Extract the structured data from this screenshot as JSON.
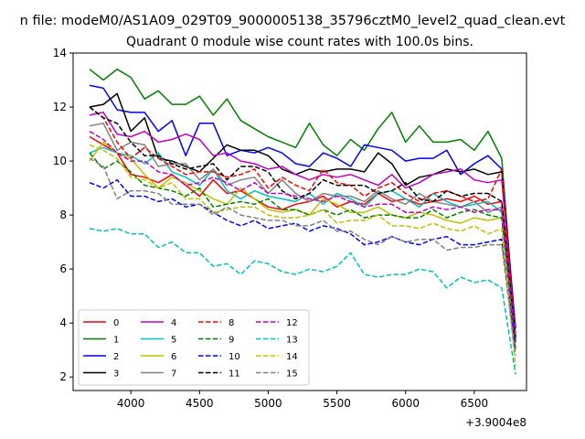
{
  "chart_data": {
    "type": "line",
    "suptitle": "n file: modeM0/AS1A09_029T09_9000005138_35796cztM0_level2_quad_clean.evt",
    "title": "Quadrant 0 module wise count rates with 100.0s bins.",
    "xlabel": "",
    "ylabel": "",
    "x_offset_label": "+3.9004e8",
    "xlim": [
      3580,
      6880
    ],
    "ylim": [
      1.5,
      14
    ],
    "xticks": [
      4000,
      4500,
      5000,
      5500,
      6000,
      6500
    ],
    "yticks": [
      2,
      4,
      6,
      8,
      10,
      12,
      14
    ],
    "legend_position": "lower-left",
    "legend_columns": 4,
    "x": [
      3700,
      3800,
      3900,
      4000,
      4100,
      4200,
      4300,
      4400,
      4500,
      4600,
      4700,
      4800,
      4900,
      5000,
      5100,
      5200,
      5300,
      5400,
      5500,
      5600,
      5700,
      5800,
      5900,
      6000,
      6100,
      6200,
      6300,
      6400,
      6500,
      6600,
      6700,
      6800
    ],
    "series": [
      {
        "name": "0",
        "color": "#ff0000",
        "dash": "solid",
        "values": [
          10.9,
          10.6,
          10.3,
          9.5,
          9.4,
          9.2,
          9.5,
          9.1,
          8.7,
          9.3,
          8.8,
          8.9,
          8.6,
          8.3,
          8.2,
          8.4,
          8.5,
          8.7,
          8.3,
          8.5,
          8.4,
          8.8,
          8.5,
          8.6,
          8.4,
          8.5,
          8.6,
          8.5,
          8.7,
          8.4,
          8.5,
          3.5
        ]
      },
      {
        "name": "1",
        "color": "#008000",
        "dash": "solid",
        "values": [
          13.4,
          13.0,
          13.4,
          13.1,
          12.3,
          12.6,
          12.1,
          12.1,
          12.4,
          11.7,
          12.3,
          11.5,
          11.2,
          10.9,
          10.7,
          10.5,
          11.4,
          10.6,
          10.2,
          10.8,
          10.4,
          11.2,
          11.8,
          10.7,
          11.3,
          10.7,
          10.7,
          10.8,
          10.4,
          11.1,
          10.1,
          3.5
        ]
      },
      {
        "name": "2",
        "color": "#0000ff",
        "dash": "solid",
        "values": [
          12.8,
          12.7,
          11.9,
          11.8,
          11.8,
          11.1,
          11.5,
          10.2,
          11.4,
          11.4,
          10.2,
          10.4,
          10.3,
          10.5,
          10.3,
          9.9,
          9.8,
          10.3,
          10.1,
          9.8,
          10.6,
          10.5,
          10.4,
          10.0,
          10.1,
          10.1,
          10.4,
          9.5,
          9.9,
          10.2,
          9.7,
          3.8
        ]
      },
      {
        "name": "3",
        "color": "#000000",
        "dash": "solid",
        "values": [
          12.0,
          12.1,
          12.5,
          11.1,
          11.6,
          10.1,
          10.0,
          9.8,
          9.6,
          10.1,
          10.6,
          10.4,
          10.4,
          10.2,
          9.7,
          9.5,
          9.7,
          9.6,
          9.7,
          9.7,
          9.6,
          10.3,
          9.9,
          9.1,
          9.4,
          9.5,
          9.7,
          9.6,
          9.7,
          9.5,
          9.6,
          3.5
        ]
      },
      {
        "name": "4",
        "color": "#bf00bf",
        "dash": "solid",
        "values": [
          11.7,
          11.8,
          11.0,
          10.9,
          11.1,
          10.7,
          10.8,
          11.0,
          10.8,
          10.2,
          10.3,
          10.0,
          9.9,
          9.7,
          9.8,
          9.5,
          9.3,
          9.5,
          9.4,
          9.5,
          9.3,
          9.1,
          9.5,
          9.0,
          9.2,
          9.5,
          9.6,
          9.7,
          9.3,
          9.2,
          9.3,
          3.5
        ]
      },
      {
        "name": "5",
        "color": "#00bfbf",
        "dash": "solid",
        "values": [
          10.3,
          10.5,
          10.3,
          10.2,
          9.9,
          10.3,
          9.6,
          9.4,
          9.1,
          9.7,
          8.9,
          8.6,
          8.9,
          8.7,
          8.6,
          8.5,
          8.8,
          8.4,
          8.8,
          8.6,
          8.3,
          8.8,
          8.9,
          8.6,
          8.3,
          8.8,
          8.5,
          8.3,
          8.4,
          8.5,
          8.1,
          3.4
        ]
      },
      {
        "name": "6",
        "color": "#bfbf00",
        "dash": "solid",
        "values": [
          10.0,
          10.7,
          10.3,
          10.1,
          9.5,
          9.0,
          9.4,
          9.2,
          8.9,
          8.6,
          8.4,
          9.0,
          8.6,
          8.2,
          8.1,
          8.2,
          8.0,
          8.6,
          8.4,
          8.1,
          8.1,
          8.3,
          8.0,
          7.9,
          8.1,
          8.0,
          7.8,
          7.7,
          7.9,
          7.8,
          7.9,
          3.0
        ]
      },
      {
        "name": "7",
        "color": "#808080",
        "dash": "solid",
        "values": [
          11.3,
          11.4,
          10.4,
          10.7,
          10.6,
          9.8,
          9.9,
          9.9,
          9.3,
          9.7,
          9.1,
          9.3,
          9.4,
          8.8,
          9.3,
          8.8,
          8.5,
          8.8,
          8.7,
          8.7,
          8.5,
          8.9,
          8.6,
          8.4,
          8.8,
          8.5,
          8.4,
          8.3,
          8.5,
          8.1,
          8.3,
          3.4
        ]
      },
      {
        "name": "8",
        "color": "#ff0000",
        "dash": "dashed",
        "values": [
          12.0,
          11.6,
          10.7,
          10.1,
          10.5,
          10.1,
          9.8,
          9.5,
          9.6,
          9.6,
          9.4,
          9.5,
          9.7,
          9.0,
          9.4,
          9.1,
          8.9,
          9.7,
          9.2,
          9.1,
          8.7,
          9.0,
          9.2,
          8.8,
          8.5,
          8.8,
          8.9,
          8.7,
          8.5,
          8.6,
          9.7,
          3.3
        ]
      },
      {
        "name": "9",
        "color": "#008000",
        "dash": "dashed",
        "values": [
          10.3,
          9.7,
          10.0,
          9.6,
          9.1,
          9.0,
          8.9,
          8.7,
          9.0,
          8.3,
          8.4,
          8.5,
          8.4,
          8.6,
          8.2,
          8.2,
          8.0,
          8.2,
          8.0,
          8.2,
          7.9,
          8.0,
          8.0,
          7.9,
          7.9,
          8.2,
          7.9,
          8.1,
          8.2,
          8.0,
          7.9,
          3.2
        ]
      },
      {
        "name": "10",
        "color": "#0000ff",
        "dash": "dashed",
        "values": [
          9.2,
          9.0,
          9.3,
          8.7,
          8.7,
          8.5,
          8.6,
          8.3,
          8.4,
          8.1,
          7.8,
          7.6,
          7.8,
          7.5,
          7.6,
          7.7,
          7.4,
          7.6,
          7.5,
          7.3,
          6.9,
          7.0,
          7.2,
          7.0,
          6.9,
          7.1,
          7.2,
          6.9,
          6.9,
          7.0,
          7.1,
          3.0
        ]
      },
      {
        "name": "11",
        "color": "#000000",
        "dash": "dashed",
        "values": [
          12.0,
          11.6,
          11.4,
          10.7,
          10.2,
          10.2,
          9.9,
          9.7,
          9.8,
          9.9,
          9.3,
          9.8,
          9.8,
          9.6,
          8.9,
          8.6,
          8.8,
          9.3,
          9.1,
          9.1,
          9.1,
          8.8,
          8.9,
          9.2,
          8.6,
          8.5,
          8.9,
          8.7,
          8.8,
          8.8,
          8.5,
          3.4
        ]
      },
      {
        "name": "12",
        "color": "#bf00bf",
        "dash": "dashed",
        "values": [
          11.1,
          10.8,
          10.3,
          10.0,
          10.0,
          9.6,
          9.5,
          9.1,
          9.2,
          9.4,
          9.2,
          8.9,
          9.2,
          8.8,
          8.8,
          8.7,
          8.6,
          8.5,
          8.7,
          8.5,
          8.3,
          8.4,
          8.4,
          8.1,
          8.1,
          8.3,
          8.2,
          8.3,
          8.1,
          8.2,
          8.2,
          3.4
        ]
      },
      {
        "name": "13",
        "color": "#00bfbf",
        "dash": "dashed",
        "values": [
          7.5,
          7.4,
          7.5,
          7.3,
          7.3,
          6.8,
          7.0,
          6.6,
          6.6,
          6.1,
          6.2,
          5.8,
          6.3,
          6.2,
          5.9,
          5.8,
          6.0,
          5.9,
          6.1,
          6.6,
          5.8,
          5.7,
          5.8,
          5.8,
          6.0,
          5.9,
          5.3,
          5.7,
          5.5,
          5.6,
          5.3,
          2.1
        ]
      },
      {
        "name": "14",
        "color": "#bfbf00",
        "dash": "dashed",
        "values": [
          10.6,
          10.4,
          10.1,
          9.4,
          9.3,
          9.0,
          9.2,
          8.6,
          8.6,
          8.1,
          8.2,
          8.3,
          8.3,
          8.0,
          7.9,
          7.9,
          8.0,
          8.2,
          7.7,
          7.8,
          7.8,
          8.0,
          7.6,
          7.6,
          7.5,
          7.7,
          7.5,
          7.4,
          7.6,
          7.3,
          7.5,
          2.4
        ]
      },
      {
        "name": "15",
        "color": "#808080",
        "dash": "dashed",
        "values": [
          10.1,
          9.8,
          8.6,
          8.9,
          8.9,
          8.8,
          8.4,
          8.4,
          8.4,
          8.0,
          8.3,
          8.0,
          7.9,
          7.8,
          7.8,
          7.6,
          7.6,
          7.8,
          7.4,
          7.4,
          7.1,
          6.9,
          7.2,
          7.0,
          7.1,
          7.1,
          6.7,
          6.8,
          6.8,
          6.9,
          6.9,
          2.8
        ]
      }
    ]
  }
}
